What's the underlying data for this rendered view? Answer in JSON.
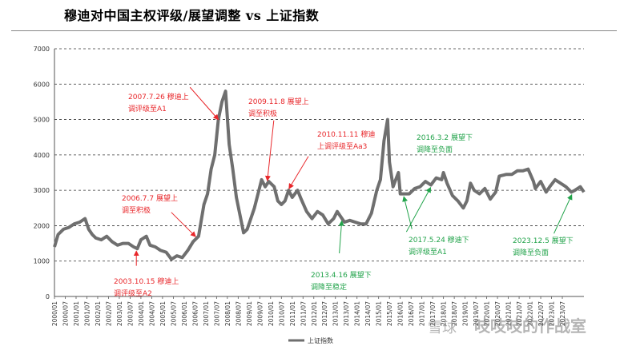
{
  "title": "穆迪对中国主权评级/展望调整 vs  上证指数",
  "watermark": "吱吱吱的作战室",
  "watermark_logo": "雪球",
  "colors": {
    "series": "#6f6f6f",
    "up": "#e8262a",
    "down": "#21a34a",
    "axis": "#555555",
    "grid": "#333333"
  },
  "chart_data": {
    "type": "line",
    "title": "",
    "xlabel": "",
    "ylabel": "",
    "ylim": [
      0,
      7000
    ],
    "yticks": [
      0,
      1000,
      2000,
      3000,
      4000,
      5000,
      6000,
      7000
    ],
    "xlim": [
      "2000-01",
      "2024-07"
    ],
    "xtick_labels": [
      "2000-01",
      "2000-07",
      "2001-01",
      "2001-07",
      "2002-01",
      "2002-07",
      "2003-01",
      "2003-07",
      "2004-01",
      "2004-07",
      "2005-01",
      "2005-07",
      "2006-01",
      "2006-07",
      "2007-01",
      "2007-07",
      "2008-01",
      "2008-07",
      "2009-01",
      "2009-07",
      "2010-01",
      "2010-07",
      "2011-01",
      "2011-07",
      "2012-01",
      "2012-07",
      "2013-01",
      "2013-07",
      "2014-01",
      "2014-07",
      "2015-01",
      "2015-07",
      "2016-01",
      "2016-07",
      "2017-01",
      "2017-07",
      "2018-01",
      "2018-07",
      "2019-01",
      "2019-07",
      "2020-01",
      "2020-07",
      "2021-01",
      "2021-07",
      "2022-01",
      "2022-07",
      "2023-01",
      "2023-07"
    ],
    "grid": "horizontal dashed",
    "legend": "bottom-center",
    "series": [
      {
        "name": "上证指数",
        "x": [
          "2000-01",
          "2000-03",
          "2000-06",
          "2000-09",
          "2000-12",
          "2001-03",
          "2001-06",
          "2001-08",
          "2001-10",
          "2001-12",
          "2002-03",
          "2002-06",
          "2002-09",
          "2002-12",
          "2003-03",
          "2003-06",
          "2003-09",
          "2003-11",
          "2004-01",
          "2004-04",
          "2004-06",
          "2004-09",
          "2004-12",
          "2005-03",
          "2005-06",
          "2005-09",
          "2005-12",
          "2006-03",
          "2006-06",
          "2006-09",
          "2006-12",
          "2007-02",
          "2007-04",
          "2007-06",
          "2007-08",
          "2007-10",
          "2007-12",
          "2008-02",
          "2008-04",
          "2008-06",
          "2008-08",
          "2008-10",
          "2008-12",
          "2009-02",
          "2009-04",
          "2009-06",
          "2009-08",
          "2009-10",
          "2009-12",
          "2010-03",
          "2010-05",
          "2010-07",
          "2010-09",
          "2010-11",
          "2011-01",
          "2011-04",
          "2011-06",
          "2011-09",
          "2011-12",
          "2012-03",
          "2012-06",
          "2012-09",
          "2012-12",
          "2013-02",
          "2013-06",
          "2013-09",
          "2013-12",
          "2014-03",
          "2014-06",
          "2014-09",
          "2014-12",
          "2015-02",
          "2015-04",
          "2015-06",
          "2015-07",
          "2015-09",
          "2015-12",
          "2016-01",
          "2016-03",
          "2016-06",
          "2016-09",
          "2016-12",
          "2017-03",
          "2017-06",
          "2017-09",
          "2017-12",
          "2018-01",
          "2018-03",
          "2018-06",
          "2018-09",
          "2018-12",
          "2019-02",
          "2019-04",
          "2019-06",
          "2019-09",
          "2019-12",
          "2020-03",
          "2020-06",
          "2020-08",
          "2020-12",
          "2021-03",
          "2021-06",
          "2021-09",
          "2021-12",
          "2022-03",
          "2022-04",
          "2022-07",
          "2022-10",
          "2022-12",
          "2023-03",
          "2023-06",
          "2023-09",
          "2023-12",
          "2024-02",
          "2024-05",
          "2024-07"
        ],
        "values": [
          1400,
          1750,
          1900,
          1950,
          2050,
          2100,
          2200,
          1900,
          1750,
          1650,
          1600,
          1700,
          1550,
          1450,
          1500,
          1500,
          1400,
          1350,
          1600,
          1700,
          1450,
          1400,
          1300,
          1250,
          1050,
          1150,
          1100,
          1300,
          1550,
          1700,
          2600,
          2900,
          3600,
          4000,
          5000,
          5500,
          5800,
          4300,
          3600,
          2800,
          2300,
          1800,
          1900,
          2200,
          2500,
          2900,
          3300,
          3100,
          3250,
          3100,
          2700,
          2600,
          2700,
          3000,
          2800,
          3000,
          2750,
          2400,
          2200,
          2400,
          2300,
          2050,
          2200,
          2400,
          2100,
          2150,
          2100,
          2050,
          2050,
          2350,
          3000,
          3300,
          4400,
          5000,
          3800,
          3100,
          3500,
          2900,
          2900,
          2900,
          3050,
          3100,
          3250,
          3150,
          3350,
          3300,
          3500,
          3200,
          2850,
          2700,
          2500,
          2700,
          3200,
          3000,
          2900,
          3050,
          2750,
          2950,
          3400,
          3450,
          3450,
          3550,
          3550,
          3600,
          3250,
          3050,
          3250,
          2950,
          3100,
          3300,
          3200,
          3100,
          2950,
          3000,
          3100,
          2950
        ]
      }
    ],
    "annotations": [
      {
        "date": "2003-10-15",
        "text": [
          "2003.10.15  穆迪上",
          "调评级至A2"
        ],
        "direction": "up"
      },
      {
        "date": "2006-07-07",
        "text": [
          "2006.7.7  展望上",
          "调至积极"
        ],
        "direction": "up"
      },
      {
        "date": "2007-07-26",
        "text": [
          "2007.7.26  穆迪上",
          "调评级至A1"
        ],
        "direction": "up"
      },
      {
        "date": "2009-11-08",
        "text": [
          "2009.11.8  展望上",
          "调至积极"
        ],
        "direction": "up"
      },
      {
        "date": "2010-11-11",
        "text": [
          "2010.11.11  穆迪",
          "上调评级至Aa3"
        ],
        "direction": "up"
      },
      {
        "date": "2013-04-16",
        "text": [
          "2013.4.16  展望下",
          "调降至稳定"
        ],
        "direction": "down"
      },
      {
        "date": "2016-03-02",
        "text": [
          "2016.3.2  展望下",
          "调降至负面"
        ],
        "direction": "down"
      },
      {
        "date": "2017-05-24",
        "text": [
          "2017.5.24  穆迪下",
          "调评级至A1"
        ],
        "direction": "down"
      },
      {
        "date": "2023-12-05",
        "text": [
          "2023.12.5  展望下",
          "调降至负面"
        ],
        "direction": "down"
      }
    ]
  }
}
